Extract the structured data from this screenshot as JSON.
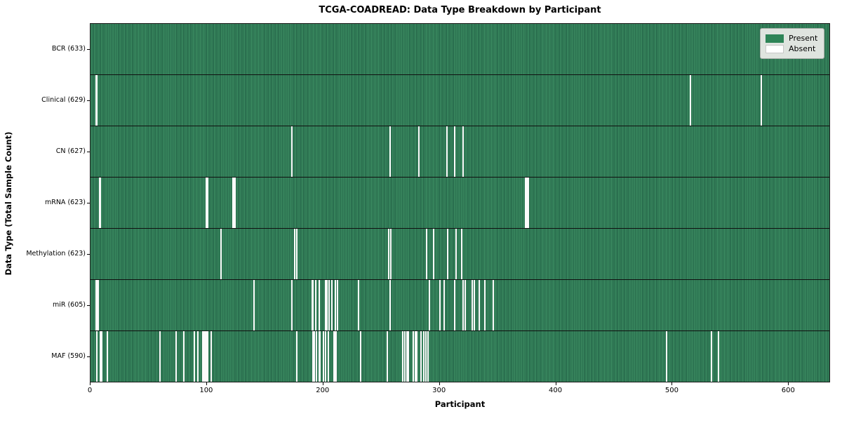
{
  "chart_data": {
    "type": "heatmap",
    "title": "TCGA-COADREAD: Data Type Breakdown by Participant",
    "xlabel": "Participant",
    "ylabel": "Data Type (Total Sample Count)",
    "x_ticks": [
      0,
      100,
      200,
      300,
      400,
      500,
      600
    ],
    "x_max": 636,
    "n_participants": 633,
    "legend": [
      {
        "label": "Present",
        "color": "#2e8457"
      },
      {
        "label": "Absent",
        "color": "#ffffff"
      }
    ],
    "rows": [
      {
        "label": "BCR (633)",
        "data_type": "BCR",
        "total_samples": 633,
        "absent_participants": []
      },
      {
        "label": "Clinical (629)",
        "data_type": "Clinical",
        "total_samples": 629,
        "absent_participants": [
          4,
          5,
          516,
          577
        ]
      },
      {
        "label": "CN (627)",
        "data_type": "CN",
        "total_samples": 627,
        "absent_participants": [
          173,
          257,
          282,
          306,
          313,
          320
        ]
      },
      {
        "label": "mRNA (623)",
        "data_type": "mRNA",
        "total_samples": 623,
        "absent_participants": [
          7,
          8,
          99,
          100,
          122,
          123,
          124,
          374,
          375,
          376
        ]
      },
      {
        "label": "Methylation (623)",
        "data_type": "Methylation",
        "total_samples": 623,
        "absent_participants": [
          112,
          175,
          177,
          256,
          258,
          289,
          295,
          307,
          314,
          319
        ]
      },
      {
        "label": "miR (605)",
        "data_type": "miR",
        "total_samples": 605,
        "absent_participants": [
          4,
          5,
          6,
          140,
          173,
          190,
          191,
          193,
          196,
          202,
          203,
          205,
          207,
          210,
          212,
          230,
          257,
          291,
          300,
          304,
          313,
          320,
          322,
          328,
          330,
          334,
          339,
          346
        ]
      },
      {
        "label": "MAF (590)",
        "data_type": "MAF",
        "total_samples": 590,
        "absent_participants": [
          5,
          8,
          9,
          14,
          59,
          73,
          80,
          89,
          92,
          96,
          97,
          98,
          99,
          100,
          103,
          177,
          191,
          192,
          194,
          196,
          197,
          200,
          202,
          204,
          209,
          210,
          211,
          232,
          255,
          268,
          270,
          272,
          273,
          277,
          279,
          280,
          284,
          286,
          288,
          290,
          495,
          534,
          540
        ]
      }
    ],
    "colors": {
      "present_fill": "#2e8457",
      "present_fill_light": "#3a8a60",
      "present_fill_dark": "#26684a",
      "absent_fill": "#ffffff",
      "plot_border": "#1a1a1a",
      "legend_background": "#dfe4df"
    },
    "layout": {
      "grid": false,
      "legend_position": "upper right"
    }
  }
}
